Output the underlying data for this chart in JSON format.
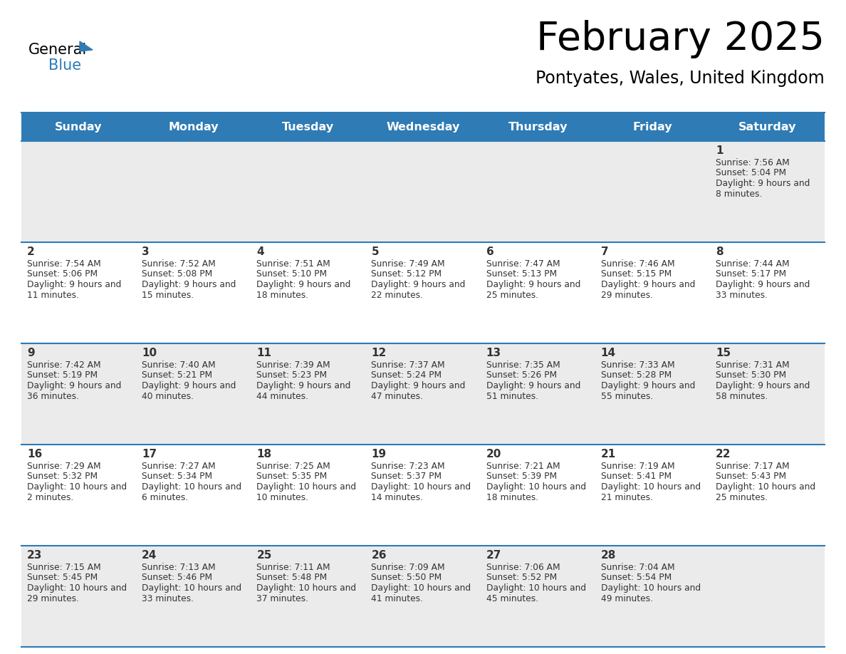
{
  "title": "February 2025",
  "subtitle": "Pontyates, Wales, United Kingdom",
  "days_of_week": [
    "Sunday",
    "Monday",
    "Tuesday",
    "Wednesday",
    "Thursday",
    "Friday",
    "Saturday"
  ],
  "header_bg": "#2E7BB5",
  "header_text": "#FFFFFF",
  "cell_bg_odd": "#EBEBEB",
  "cell_bg_even": "#FFFFFF",
  "divider_color": "#2E7BB5",
  "text_color": "#333333",
  "calendar_data": [
    {
      "day": 1,
      "col": 6,
      "row": 0,
      "sunrise": "7:56 AM",
      "sunset": "5:04 PM",
      "daylight": "9 hours and 8 minutes"
    },
    {
      "day": 2,
      "col": 0,
      "row": 1,
      "sunrise": "7:54 AM",
      "sunset": "5:06 PM",
      "daylight": "9 hours and 11 minutes"
    },
    {
      "day": 3,
      "col": 1,
      "row": 1,
      "sunrise": "7:52 AM",
      "sunset": "5:08 PM",
      "daylight": "9 hours and 15 minutes"
    },
    {
      "day": 4,
      "col": 2,
      "row": 1,
      "sunrise": "7:51 AM",
      "sunset": "5:10 PM",
      "daylight": "9 hours and 18 minutes"
    },
    {
      "day": 5,
      "col": 3,
      "row": 1,
      "sunrise": "7:49 AM",
      "sunset": "5:12 PM",
      "daylight": "9 hours and 22 minutes"
    },
    {
      "day": 6,
      "col": 4,
      "row": 1,
      "sunrise": "7:47 AM",
      "sunset": "5:13 PM",
      "daylight": "9 hours and 25 minutes"
    },
    {
      "day": 7,
      "col": 5,
      "row": 1,
      "sunrise": "7:46 AM",
      "sunset": "5:15 PM",
      "daylight": "9 hours and 29 minutes"
    },
    {
      "day": 8,
      "col": 6,
      "row": 1,
      "sunrise": "7:44 AM",
      "sunset": "5:17 PM",
      "daylight": "9 hours and 33 minutes"
    },
    {
      "day": 9,
      "col": 0,
      "row": 2,
      "sunrise": "7:42 AM",
      "sunset": "5:19 PM",
      "daylight": "9 hours and 36 minutes"
    },
    {
      "day": 10,
      "col": 1,
      "row": 2,
      "sunrise": "7:40 AM",
      "sunset": "5:21 PM",
      "daylight": "9 hours and 40 minutes"
    },
    {
      "day": 11,
      "col": 2,
      "row": 2,
      "sunrise": "7:39 AM",
      "sunset": "5:23 PM",
      "daylight": "9 hours and 44 minutes"
    },
    {
      "day": 12,
      "col": 3,
      "row": 2,
      "sunrise": "7:37 AM",
      "sunset": "5:24 PM",
      "daylight": "9 hours and 47 minutes"
    },
    {
      "day": 13,
      "col": 4,
      "row": 2,
      "sunrise": "7:35 AM",
      "sunset": "5:26 PM",
      "daylight": "9 hours and 51 minutes"
    },
    {
      "day": 14,
      "col": 5,
      "row": 2,
      "sunrise": "7:33 AM",
      "sunset": "5:28 PM",
      "daylight": "9 hours and 55 minutes"
    },
    {
      "day": 15,
      "col": 6,
      "row": 2,
      "sunrise": "7:31 AM",
      "sunset": "5:30 PM",
      "daylight": "9 hours and 58 minutes"
    },
    {
      "day": 16,
      "col": 0,
      "row": 3,
      "sunrise": "7:29 AM",
      "sunset": "5:32 PM",
      "daylight": "10 hours and 2 minutes"
    },
    {
      "day": 17,
      "col": 1,
      "row": 3,
      "sunrise": "7:27 AM",
      "sunset": "5:34 PM",
      "daylight": "10 hours and 6 minutes"
    },
    {
      "day": 18,
      "col": 2,
      "row": 3,
      "sunrise": "7:25 AM",
      "sunset": "5:35 PM",
      "daylight": "10 hours and 10 minutes"
    },
    {
      "day": 19,
      "col": 3,
      "row": 3,
      "sunrise": "7:23 AM",
      "sunset": "5:37 PM",
      "daylight": "10 hours and 14 minutes"
    },
    {
      "day": 20,
      "col": 4,
      "row": 3,
      "sunrise": "7:21 AM",
      "sunset": "5:39 PM",
      "daylight": "10 hours and 18 minutes"
    },
    {
      "day": 21,
      "col": 5,
      "row": 3,
      "sunrise": "7:19 AM",
      "sunset": "5:41 PM",
      "daylight": "10 hours and 21 minutes"
    },
    {
      "day": 22,
      "col": 6,
      "row": 3,
      "sunrise": "7:17 AM",
      "sunset": "5:43 PM",
      "daylight": "10 hours and 25 minutes"
    },
    {
      "day": 23,
      "col": 0,
      "row": 4,
      "sunrise": "7:15 AM",
      "sunset": "5:45 PM",
      "daylight": "10 hours and 29 minutes"
    },
    {
      "day": 24,
      "col": 1,
      "row": 4,
      "sunrise": "7:13 AM",
      "sunset": "5:46 PM",
      "daylight": "10 hours and 33 minutes"
    },
    {
      "day": 25,
      "col": 2,
      "row": 4,
      "sunrise": "7:11 AM",
      "sunset": "5:48 PM",
      "daylight": "10 hours and 37 minutes"
    },
    {
      "day": 26,
      "col": 3,
      "row": 4,
      "sunrise": "7:09 AM",
      "sunset": "5:50 PM",
      "daylight": "10 hours and 41 minutes"
    },
    {
      "day": 27,
      "col": 4,
      "row": 4,
      "sunrise": "7:06 AM",
      "sunset": "5:52 PM",
      "daylight": "10 hours and 45 minutes"
    },
    {
      "day": 28,
      "col": 5,
      "row": 4,
      "sunrise": "7:04 AM",
      "sunset": "5:54 PM",
      "daylight": "10 hours and 49 minutes"
    }
  ],
  "num_rows": 5,
  "num_cols": 7,
  "logo_color": "#2E7BB5"
}
